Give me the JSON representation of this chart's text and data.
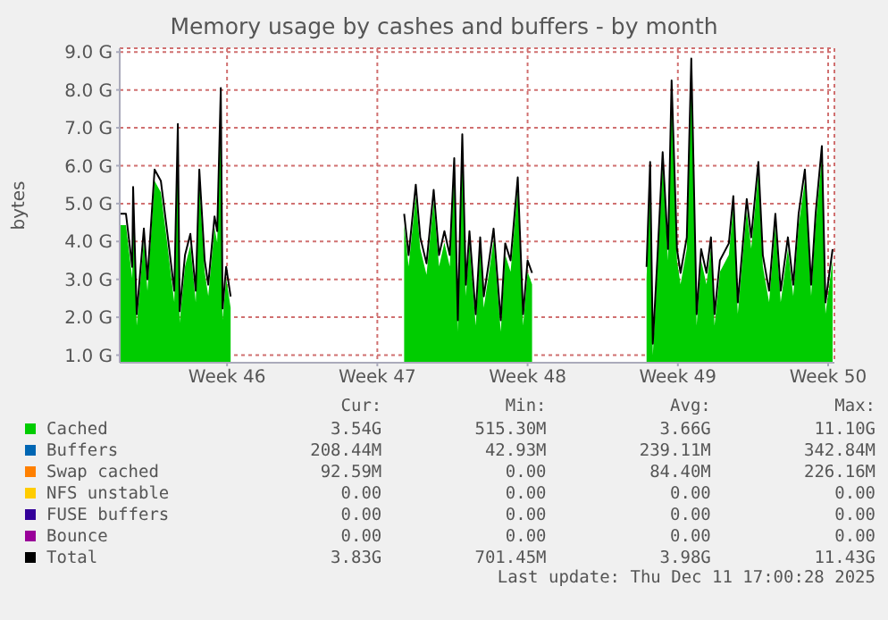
{
  "chart_data": {
    "type": "area",
    "title": "Memory usage by cashes and buffers - by month",
    "ylabel": "bytes",
    "x": [
      "2025-11-08T12:00",
      "2025-11-08T19:00",
      "2025-11-09T02:00",
      "2025-11-09T03:00",
      "2025-11-09T07:00",
      "2025-11-09T15:00",
      "2025-11-09T19:00",
      "2025-11-10T03:00",
      "2025-11-10T10:00",
      "2025-11-10T17:00",
      "2025-11-11T01:00",
      "2025-11-11T05:00",
      "2025-11-11T07:00",
      "2025-11-11T13:00",
      "2025-11-11T19:00",
      "2025-11-12T01:00",
      "2025-11-12T05:00",
      "2025-11-12T11:00",
      "2025-11-12T15:00",
      "2025-11-12T22:00",
      "2025-11-13T01:00",
      "2025-11-13T05:00",
      "2025-11-13T07:00",
      "2025-11-13T11:00",
      "2025-11-13T16:00",
      "2025-11-18T12:00",
      "2025-11-21T18:00",
      "2025-11-21T23:00",
      "2025-11-22T07:00",
      "2025-11-22T12:00",
      "2025-11-22T19:00",
      "2025-11-23T03:00",
      "2025-11-23T09:00",
      "2025-11-23T15:00",
      "2025-11-23T21:00",
      "2025-11-24T02:00",
      "2025-11-24T06:00",
      "2025-11-24T11:00",
      "2025-11-24T15:00",
      "2025-11-24T19:00",
      "2025-11-25T02:00",
      "2025-11-25T07:00",
      "2025-11-25T11:00",
      "2025-11-25T17:00",
      "2025-11-25T22:00",
      "2025-11-26T06:00",
      "2025-11-26T11:00",
      "2025-11-26T17:00",
      "2025-11-27T01:00",
      "2025-11-27T07:00",
      "2025-11-27T12:00",
      "2025-11-27T17:00",
      "2025-11-30T12:00",
      "2025-12-03T01:00",
      "2025-12-03T05:00",
      "2025-12-03T08:00",
      "2025-12-03T13:00",
      "2025-12-03T19:00",
      "2025-12-04T01:00",
      "2025-12-04T05:00",
      "2025-12-04T11:00",
      "2025-12-04T15:00",
      "2025-12-04T22:00",
      "2025-12-05T03:00",
      "2025-12-05T09:00",
      "2025-12-05T14:00",
      "2025-12-05T20:00",
      "2025-12-06T01:00",
      "2025-12-06T05:00",
      "2025-12-06T11:00",
      "2025-12-06T21:00",
      "2025-12-07T02:00",
      "2025-12-07T07:00",
      "2025-12-07T17:00",
      "2025-12-07T22:00",
      "2025-12-08T06:00",
      "2025-12-08T11:00",
      "2025-12-08T18:00",
      "2025-12-09T01:00",
      "2025-12-09T07:00",
      "2025-12-09T15:00",
      "2025-12-09T21:00",
      "2025-12-10T03:00",
      "2025-12-10T10:00",
      "2025-12-10T17:00",
      "2025-12-10T22:00",
      "2025-12-11T05:00",
      "2025-12-11T09:00",
      "2025-12-11T17:00"
    ],
    "xlim": [
      "2025-11-08T12:00",
      "2025-12-11T19:00"
    ],
    "xticks": [
      {
        "value": "2025-11-13T12:00",
        "label": "Week 46"
      },
      {
        "value": "2025-11-20T12:00",
        "label": "Week 47"
      },
      {
        "value": "2025-11-27T12:00",
        "label": "Week 48"
      },
      {
        "value": "2025-12-04T12:00",
        "label": "Week 49"
      },
      {
        "value": "2025-12-11T12:00",
        "label": "Week 50"
      }
    ],
    "ylim": [
      0.8,
      9.1
    ],
    "yticks": [
      {
        "value": 1,
        "label": "1.0 G"
      },
      {
        "value": 2,
        "label": "2.0 G"
      },
      {
        "value": 3,
        "label": "3.0 G"
      },
      {
        "value": 4,
        "label": "4.0 G"
      },
      {
        "value": 5,
        "label": "5.0 G"
      },
      {
        "value": 6,
        "label": "6.0 G"
      },
      {
        "value": 7,
        "label": "7.0 G"
      },
      {
        "value": 8,
        "label": "8.0 G"
      },
      {
        "value": 9,
        "label": "9.0 G"
      }
    ],
    "grid": true,
    "legend": "bottom",
    "series": [
      {
        "name": "Cached",
        "color": "#00cc00",
        "values": [
          4.43,
          4.43,
          3.03,
          5.14,
          1.78,
          4.04,
          2.7,
          5.6,
          5.3,
          3.97,
          2.4,
          6.8,
          1.86,
          3.34,
          3.9,
          2.4,
          5.6,
          3.2,
          2.56,
          4.36,
          3.97,
          7.75,
          1.93,
          3.03,
          2.25,
          null,
          4.43,
          3.34,
          5.2,
          3.81,
          3.12,
          5.06,
          3.34,
          3.97,
          3.34,
          5.9,
          1.62,
          6.53,
          2.56,
          3.97,
          1.78,
          3.81,
          2.25,
          3.2,
          4.04,
          1.62,
          3.65,
          3.2,
          5.39,
          1.78,
          3.2,
          2.87,
          null,
          3.03,
          5.8,
          1.0,
          3.2,
          6.06,
          3.5,
          7.95,
          3.5,
          2.87,
          3.81,
          8.53,
          1.78,
          3.5,
          2.87,
          3.81,
          1.78,
          3.2,
          3.65,
          4.9,
          2.09,
          4.82,
          3.81,
          5.8,
          3.34,
          2.4,
          4.43,
          2.4,
          3.81,
          2.56,
          4.43,
          5.6,
          2.56,
          4.43,
          6.22,
          2.09,
          3.5
        ]
      },
      {
        "name": "Buffers",
        "color": "#0066b3",
        "values": [
          null,
          null,
          null,
          null,
          null,
          null,
          null,
          null,
          null,
          null,
          null,
          null,
          null,
          null,
          null,
          null,
          null,
          null,
          null,
          null,
          null,
          null,
          null,
          null,
          null,
          null,
          null,
          null,
          null,
          null,
          null,
          null,
          null,
          null,
          null,
          null,
          null,
          null,
          null,
          null,
          null,
          null,
          null,
          null,
          null,
          null,
          null,
          null,
          null,
          null,
          null,
          null,
          null,
          null,
          null,
          null,
          null,
          null,
          null,
          null,
          null,
          null,
          null,
          null,
          null,
          null,
          null,
          null,
          null,
          null,
          null,
          null,
          null,
          null,
          null,
          null,
          null,
          null,
          null,
          null,
          null,
          null,
          null,
          null,
          null,
          null,
          null,
          null,
          null
        ]
      },
      {
        "name": "Swap cached",
        "color": "#ff8000",
        "values": [
          null,
          null,
          null,
          null,
          null,
          null,
          null,
          null,
          null,
          null,
          null,
          null,
          null,
          null,
          null,
          null,
          null,
          null,
          null,
          null,
          null,
          null,
          null,
          null,
          null,
          null,
          null,
          null,
          null,
          null,
          null,
          null,
          null,
          null,
          null,
          null,
          null,
          null,
          null,
          null,
          null,
          null,
          null,
          null,
          null,
          null,
          null,
          null,
          null,
          null,
          null,
          null,
          null,
          null,
          null,
          null,
          null,
          null,
          null,
          null,
          null,
          null,
          null,
          null,
          null,
          null,
          null,
          null,
          null,
          null,
          null,
          null,
          null,
          null,
          null,
          null,
          null,
          null,
          null,
          null,
          null,
          null,
          null,
          null,
          null,
          null,
          null,
          null,
          null
        ]
      },
      {
        "name": "NFS unstable",
        "color": "#ffcc00",
        "values": [
          null,
          null,
          null,
          null,
          null,
          null,
          null,
          null,
          null,
          null,
          null,
          null,
          null,
          null,
          null,
          null,
          null,
          null,
          null,
          null,
          null,
          null,
          null,
          null,
          null,
          null,
          null,
          null,
          null,
          null,
          null,
          null,
          null,
          null,
          null,
          null,
          null,
          null,
          null,
          null,
          null,
          null,
          null,
          null,
          null,
          null,
          null,
          null,
          null,
          null,
          null,
          null,
          null,
          null,
          null,
          null,
          null,
          null,
          null,
          null,
          null,
          null,
          null,
          null,
          null,
          null,
          null,
          null,
          null,
          null,
          null,
          null,
          null,
          null,
          null,
          null,
          null,
          null,
          null,
          null,
          null,
          null,
          null,
          null,
          null,
          null,
          null,
          null,
          null
        ]
      },
      {
        "name": "FUSE buffers",
        "color": "#330099",
        "values": [
          null,
          null,
          null,
          null,
          null,
          null,
          null,
          null,
          null,
          null,
          null,
          null,
          null,
          null,
          null,
          null,
          null,
          null,
          null,
          null,
          null,
          null,
          null,
          null,
          null,
          null,
          null,
          null,
          null,
          null,
          null,
          null,
          null,
          null,
          null,
          null,
          null,
          null,
          null,
          null,
          null,
          null,
          null,
          null,
          null,
          null,
          null,
          null,
          null,
          null,
          null,
          null,
          null,
          null,
          null,
          null,
          null,
          null,
          null,
          null,
          null,
          null,
          null,
          null,
          null,
          null,
          null,
          null,
          null,
          null,
          null,
          null,
          null,
          null,
          null,
          null,
          null,
          null,
          null,
          null,
          null,
          null,
          null,
          null,
          null,
          null,
          null,
          null,
          null
        ]
      },
      {
        "name": "Bounce",
        "color": "#990099",
        "values": [
          null,
          null,
          null,
          null,
          null,
          null,
          null,
          null,
          null,
          null,
          null,
          null,
          null,
          null,
          null,
          null,
          null,
          null,
          null,
          null,
          null,
          null,
          null,
          null,
          null,
          null,
          null,
          null,
          null,
          null,
          null,
          null,
          null,
          null,
          null,
          null,
          null,
          null,
          null,
          null,
          null,
          null,
          null,
          null,
          null,
          null,
          null,
          null,
          null,
          null,
          null,
          null,
          null,
          null,
          null,
          null,
          null,
          null,
          null,
          null,
          null,
          null,
          null,
          null,
          null,
          null,
          null,
          null,
          null,
          null,
          null,
          null,
          null,
          null,
          null,
          null,
          null,
          null,
          null,
          null,
          null,
          null,
          null,
          null,
          null,
          null,
          null,
          null,
          null
        ]
      },
      {
        "name": "Total",
        "type": "line",
        "color": "#000000",
        "values": [
          4.73,
          4.73,
          3.33,
          5.44,
          2.08,
          4.34,
          3.0,
          5.9,
          5.6,
          4.27,
          2.7,
          7.1,
          2.16,
          3.64,
          4.2,
          2.7,
          5.9,
          3.5,
          2.86,
          4.66,
          4.27,
          8.05,
          2.23,
          3.33,
          2.55,
          null,
          4.73,
          3.64,
          5.5,
          4.11,
          3.42,
          5.36,
          3.64,
          4.27,
          3.64,
          6.2,
          1.92,
          6.83,
          2.86,
          4.27,
          2.08,
          4.11,
          2.55,
          3.5,
          4.34,
          1.92,
          3.95,
          3.5,
          5.69,
          2.08,
          3.5,
          3.17,
          null,
          3.33,
          6.1,
          1.3,
          3.5,
          6.36,
          3.8,
          8.25,
          3.8,
          3.17,
          4.11,
          8.83,
          2.08,
          3.8,
          3.17,
          4.11,
          2.08,
          3.5,
          3.95,
          5.2,
          2.39,
          5.12,
          4.11,
          6.1,
          3.64,
          2.7,
          4.73,
          2.7,
          4.11,
          2.86,
          4.73,
          5.9,
          2.86,
          4.73,
          6.52,
          2.39,
          3.8
        ]
      }
    ],
    "annotations": [
      "Cur:",
      "Min:",
      "Avg:",
      "Max:",
      "3.54G",
      "515.30M",
      "3.66G",
      "11.10G",
      "208.44M",
      "42.93M",
      "239.11M",
      "342.84M",
      "92.59M",
      "0.00",
      "84.40M",
      "226.16M",
      "0.00",
      "0.00",
      "0.00",
      "0.00",
      "0.00",
      "0.00",
      "0.00",
      "0.00",
      "0.00",
      "0.00",
      "0.00",
      "0.00",
      "3.83G",
      "701.45M",
      "3.98G",
      "11.43G",
      "Last update: Thu Dec 11 17:00:28 2025"
    ]
  }
}
